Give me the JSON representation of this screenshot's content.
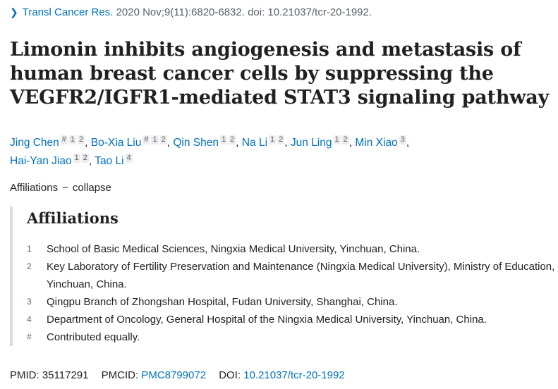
{
  "citation": {
    "journal": "Transl Cancer Res.",
    "details": "2020 Nov;9(11):6820-6832. doi: 10.21037/tcr-20-1992."
  },
  "title_lines": [
    "Limonin inhibits angiogenesis and metastasis of",
    "human breast cancer cells by suppressing the",
    "VEGFR2/IGFR1-mediated STAT3 signaling pathway"
  ],
  "authors": [
    {
      "name": "Jing Chen",
      "marks": [
        "#",
        "1",
        "2"
      ],
      "sep": ","
    },
    {
      "name": "Bo-Xia Liu",
      "marks": [
        "#",
        "1",
        "2"
      ],
      "sep": ","
    },
    {
      "name": "Qin Shen",
      "marks": [
        "1",
        "2"
      ],
      "sep": ","
    },
    {
      "name": "Na Li",
      "marks": [
        "1",
        "2"
      ],
      "sep": ","
    },
    {
      "name": "Jun Ling",
      "marks": [
        "1",
        "2"
      ],
      "sep": ","
    },
    {
      "name": "Min Xiao",
      "marks": [
        "3"
      ],
      "sep": ","
    },
    {
      "name": "Hai-Yan Jiao",
      "marks": [
        "1",
        "2"
      ],
      "sep": ","
    },
    {
      "name": "Tao Li",
      "marks": [
        "4"
      ],
      "sep": ""
    }
  ],
  "affiliations_toggle": {
    "label": "Affiliations",
    "dash": "−",
    "action": "collapse"
  },
  "affiliations": {
    "heading": "Affiliations",
    "items": [
      {
        "num": "1",
        "text": "School of Basic Medical Sciences, Ningxia Medical University, Yinchuan, China."
      },
      {
        "num": "2",
        "text": "Key Laboratory of Fertility Preservation and Maintenance (Ningxia Medical University), Ministry of Education, Yinchuan, China."
      },
      {
        "num": "3",
        "text": "Qingpu Branch of Zhongshan Hospital, Fudan University, Shanghai, China."
      },
      {
        "num": "4",
        "text": "Department of Oncology, General Hospital of the Ningxia Medical University, Yinchuan, China."
      },
      {
        "num": "#",
        "text": "Contributed equally."
      }
    ]
  },
  "identifiers": {
    "pmid_label": "PMID:",
    "pmid": "35117291",
    "pmcid_label": "PMCID:",
    "pmcid": "PMC8799072",
    "doi_label": "DOI:",
    "doi": "10.21037/tcr-20-1992"
  },
  "colors": {
    "link": "#0071bc",
    "text": "#212121",
    "muted": "#5b616b",
    "rule": "#dcdcdc"
  }
}
